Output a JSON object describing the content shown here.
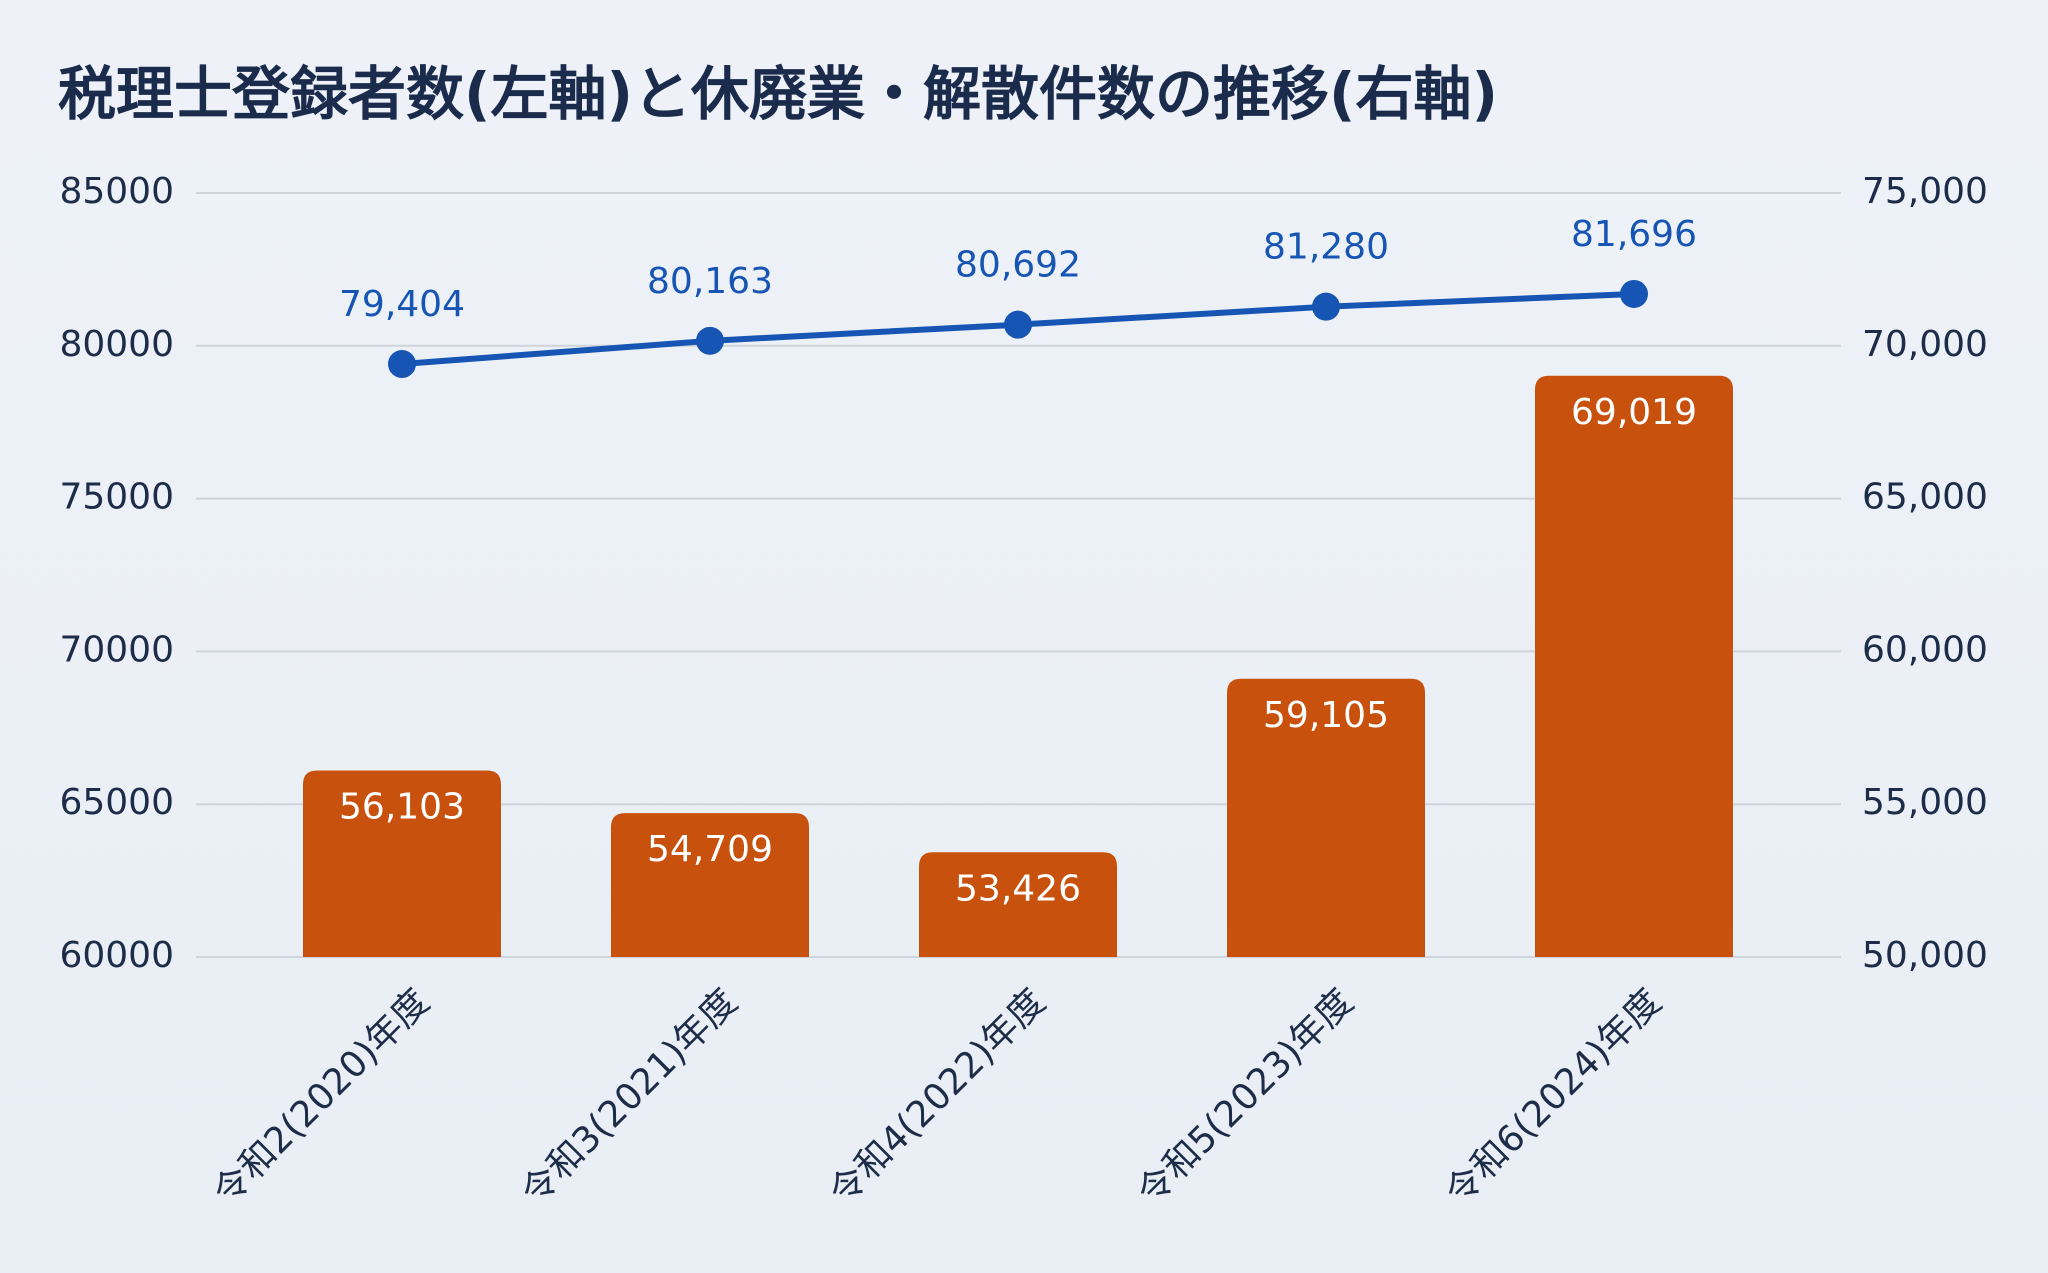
{
  "chart_data": {
    "type": "bar",
    "title": "税理士登録者数(左軸)と休廃業・解散件数の推移(右軸)",
    "categories": [
      "令和2(2020)年度",
      "令和3(2021)年度",
      "令和4(2022)年度",
      "令和5(2023)年度",
      "令和6(2024)年度"
    ],
    "series": [
      {
        "type": "bar",
        "axis": "y2",
        "color": "#c8520d",
        "values": [
          56103,
          54709,
          53426,
          59105,
          69019
        ],
        "value_labels": [
          "56,103",
          "54,709",
          "53,426",
          "59,105",
          "69,019"
        ]
      },
      {
        "type": "line",
        "color": "#1655b3",
        "values": [
          79404,
          80163,
          80692,
          81280,
          81696
        ],
        "value_labels": [
          "79,404",
          "80,163",
          "80,692",
          "81,280",
          "81,696"
        ]
      }
    ],
    "ylim": [
      60000,
      85000
    ],
    "yticks": [
      60000,
      65000,
      70000,
      75000,
      80000,
      85000
    ],
    "y2lim": [
      50000,
      75000
    ],
    "y2ticks": [
      {
        "value": 50000,
        "label": "50,000"
      },
      {
        "value": 55000,
        "label": "55,000"
      },
      {
        "value": 60000,
        "label": "60,000"
      },
      {
        "value": 65000,
        "label": "65,000"
      },
      {
        "value": 70000,
        "label": "70,000"
      },
      {
        "value": 75000,
        "label": "75,000"
      }
    ],
    "grid": true
  }
}
